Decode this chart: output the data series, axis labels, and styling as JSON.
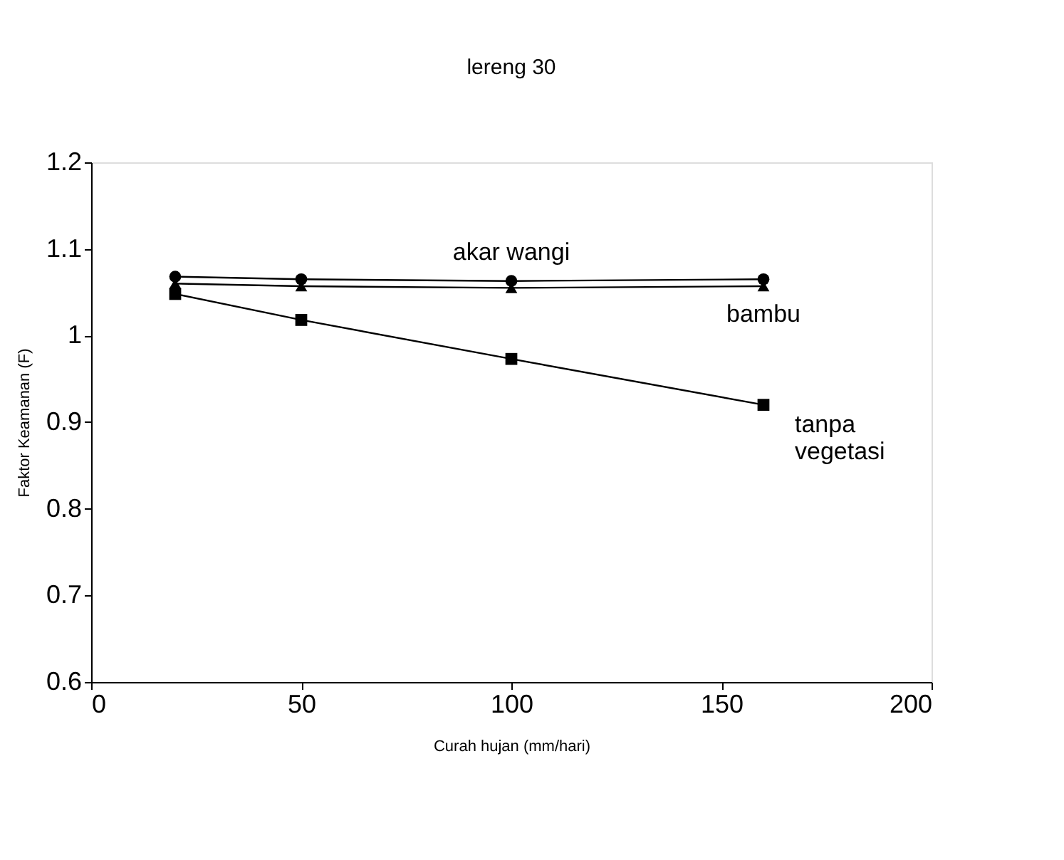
{
  "chart_data": {
    "type": "line",
    "title": "lereng 30",
    "xlabel": "Curah hujan (mm/hari)",
    "ylabel": "Faktor Keamanan (F)",
    "x": [
      20,
      50,
      100,
      160
    ],
    "series": [
      {
        "name": "akar wangi",
        "color": "#000000",
        "marker": "circle",
        "values": [
          1.068,
          1.065,
          1.063,
          1.065
        ]
      },
      {
        "name": "bambu",
        "color": "#000000",
        "marker": "triangle",
        "values": [
          1.06,
          1.057,
          1.055,
          1.057
        ]
      },
      {
        "name": "tanpa vegetasi",
        "color": "#000000",
        "marker": "square",
        "values": [
          1.048,
          1.018,
          0.973,
          0.92
        ]
      }
    ],
    "xlim": [
      0,
      200
    ],
    "xticks": [
      0,
      50,
      100,
      150,
      200
    ],
    "ylim": [
      0.6,
      1.2
    ],
    "yticks": [
      0.6,
      0.7,
      0.8,
      0.9,
      1,
      1.1,
      1.2
    ],
    "grid": false,
    "legend": false,
    "line_style": "solid"
  }
}
